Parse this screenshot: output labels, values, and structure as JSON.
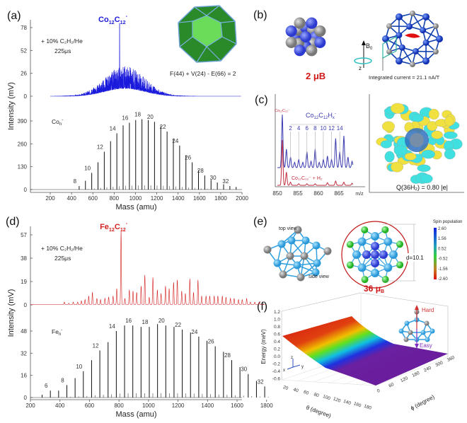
{
  "panels": {
    "a": "(a)",
    "b": "(b)",
    "c": "(c)",
    "d": "(d)",
    "e": "(e)",
    "f": "(f)"
  },
  "chart_data": [
    {
      "panel": "a",
      "type": "line",
      "xlabel": "Mass (amu)",
      "ylabel": "Intensity (mV)",
      "xticks": [
        200,
        400,
        600,
        800,
        1000,
        1200,
        1400,
        1600,
        1800,
        2000
      ],
      "xlim": [
        50,
        2000
      ],
      "top": {
        "yticks": [
          0,
          26,
          52,
          78
        ],
        "annotation": "+ 10% C₂H₂/He",
        "time": "225μs",
        "peak_label": {
          "base": "Co",
          "s1": "12",
          "mid": "C",
          "s2": "12",
          "sup": "-"
        },
        "main_peak": {
          "x": 851,
          "y": 83
        },
        "envelope_center": 900,
        "envelope_max": 35,
        "color": "#1a1adc"
      },
      "bottom": {
        "yticks": [
          0,
          130,
          260,
          390
        ],
        "series_label": {
          "base": "Co",
          "sub": "n",
          "sup": "-"
        },
        "unit_mass": 58.93,
        "n": [
          8,
          9,
          10,
          11,
          12,
          13,
          14,
          15,
          16,
          17,
          18,
          19,
          20,
          21,
          22,
          23,
          24,
          25,
          26,
          27,
          28,
          29,
          30,
          31,
          32,
          33
        ],
        "values": [
          20,
          50,
          95,
          155,
          215,
          275,
          320,
          365,
          380,
          395,
          400,
          395,
          385,
          360,
          330,
          290,
          250,
          195,
          155,
          110,
          80,
          55,
          40,
          30,
          20,
          15
        ],
        "labeled_n": [
          8,
          10,
          12,
          14,
          16,
          18,
          20,
          22,
          24,
          26,
          28,
          30,
          32
        ]
      }
    },
    {
      "panel": "d",
      "type": "line",
      "xlabel": "Mass (amu)",
      "ylabel": "Intensity (mV)",
      "xticks": [
        200,
        400,
        600,
        800,
        1000,
        1200,
        1400,
        1600,
        1800
      ],
      "xlim": [
        200,
        1800
      ],
      "top": {
        "yticks": [
          0,
          19,
          38,
          57
        ],
        "annotation": "+ 10% C₂H₂/He",
        "time": "225μs",
        "peak_label": {
          "base": "Fe",
          "s1": "12",
          "mid": "C",
          "s2": "12",
          "sup": "-"
        },
        "main_peak": {
          "x": 814,
          "y": 60
        },
        "color": "#d42020",
        "peaks_x": [
          430,
          460,
          490,
          520,
          545,
          570,
          595,
          620,
          650,
          675,
          705,
          730,
          760,
          785,
          814,
          840,
          870,
          895,
          920,
          950,
          975,
          1005,
          1030,
          1060,
          1085,
          1115,
          1140,
          1170,
          1195,
          1225,
          1250,
          1280,
          1305,
          1335,
          1360,
          1390,
          1415,
          1445,
          1470,
          1500,
          1525,
          1555,
          1580,
          1610,
          1635,
          1665,
          1690,
          1720,
          1750
        ],
        "peaks_y": [
          2,
          1,
          2,
          2,
          3,
          4,
          7,
          10,
          5,
          4,
          5,
          6,
          7,
          13,
          60,
          5,
          12,
          11,
          10,
          15,
          24,
          6,
          22,
          12,
          9,
          15,
          13,
          18,
          20,
          11,
          9,
          21,
          10,
          20,
          7,
          7,
          7,
          7,
          7,
          7,
          6,
          5,
          5,
          4,
          4,
          5,
          2,
          2,
          2
        ]
      },
      "bottom": {
        "yticks": [
          0,
          16,
          32,
          48
        ],
        "series_label": {
          "base": "Fe",
          "sub": "n",
          "sup": "-"
        },
        "unit_mass": 55.85,
        "n": [
          5,
          6,
          7,
          8,
          9,
          10,
          11,
          12,
          13,
          14,
          15,
          16,
          17,
          18,
          19,
          20,
          21,
          22,
          23,
          24,
          25,
          26,
          27,
          28,
          29,
          30,
          31,
          32
        ],
        "values": [
          2,
          5,
          5,
          9,
          14,
          19,
          27,
          34,
          40,
          48,
          52,
          52,
          51,
          51,
          53,
          52,
          51,
          49,
          47,
          44,
          41,
          37,
          33,
          27,
          22,
          17,
          12,
          8
        ],
        "labeled_n": [
          6,
          8,
          10,
          12,
          14,
          16,
          18,
          20,
          22,
          24,
          26,
          28,
          30,
          32
        ]
      }
    },
    {
      "panel": "c",
      "type": "line",
      "xlabel": "m/z",
      "xticks": [
        850,
        855,
        860,
        865
      ],
      "xlim": [
        850,
        868.5
      ],
      "series_labels": {
        "blue": {
          "base": "Co",
          "s1": "12",
          "mid": "C",
          "s2": "12",
          "h": "H",
          "hs": "x",
          "sup": "-"
        },
        "red": {
          "text": "Co₁₂C₁₂⁻ + H₂"
        },
        "parent": "Co₁₂C₁₂⁻"
      },
      "x_labels": [
        2,
        4,
        6,
        8,
        10,
        12,
        14
      ],
      "blue_peaks": [
        [
          851.2,
          1.0
        ],
        [
          852.2,
          0.35
        ],
        [
          853.2,
          0.2
        ],
        [
          854.2,
          0.1
        ],
        [
          855.2,
          0.15
        ],
        [
          856.2,
          0.1
        ],
        [
          857.2,
          0.3
        ],
        [
          858.2,
          0.12
        ],
        [
          859.2,
          0.35
        ],
        [
          860.2,
          0.1
        ],
        [
          861.2,
          0.15
        ],
        [
          862.2,
          0.22
        ],
        [
          863.2,
          0.15
        ],
        [
          864.2,
          0.55
        ],
        [
          865.2,
          0.3
        ],
        [
          866.2,
          0.6
        ],
        [
          867.2,
          0.2
        ],
        [
          868.2,
          0.12
        ]
      ],
      "red_peaks": [
        [
          851.2,
          0.85
        ],
        [
          852.2,
          0.25
        ],
        [
          853.2,
          0.06
        ],
        [
          855.2,
          0.03
        ],
        [
          857.2,
          0.03
        ],
        [
          859.2,
          0.03
        ],
        [
          862.2,
          0.05
        ],
        [
          864.2,
          0.08
        ],
        [
          866.2,
          0.06
        ],
        [
          868.2,
          0.04
        ]
      ],
      "colors": {
        "blue": "#3a3ab0",
        "red": "#c03040"
      }
    },
    {
      "panel": "f",
      "type": "surface",
      "zlabel": "Energy (meV)",
      "xlabel": "θ (degree)",
      "ylabel": "ϕ (degree)",
      "zticks": [
        "1.2",
        "1.0",
        "0.8",
        "0.6",
        "0.4",
        "0.2",
        "0.0",
        "-0.2",
        "-0.4",
        "-0.6"
      ],
      "xticks": [
        20,
        40,
        60,
        80,
        100,
        120,
        140,
        160,
        180
      ],
      "yticks": [
        0,
        60,
        120,
        180,
        240,
        300,
        360
      ],
      "hard_label": "Hard",
      "easy_label": "Easy"
    }
  ],
  "b": {
    "moment": "2 μB",
    "moment_num": "2 ",
    "mu": "μ",
    "muB": "B",
    "field": "B",
    "field_sub": "0",
    "axis_z": "z",
    "current": "Integrated current = 21.1 nA/T"
  },
  "a_formula": "F(44) + V(24) - E(66) = 2",
  "c_charge": "Q(36H₂) = 0.80 |e|",
  "e": {
    "top_view": "top view",
    "side_view": "side view",
    "diameter": "d=10.1",
    "moment_num": "36 ",
    "mu": "μ",
    "muB": "B",
    "colorbar_title": "Spin population",
    "colorbar_ticks": [
      "2.60",
      "1.56",
      "0.52",
      "-0.52",
      "-1.56",
      "-2.60"
    ]
  }
}
